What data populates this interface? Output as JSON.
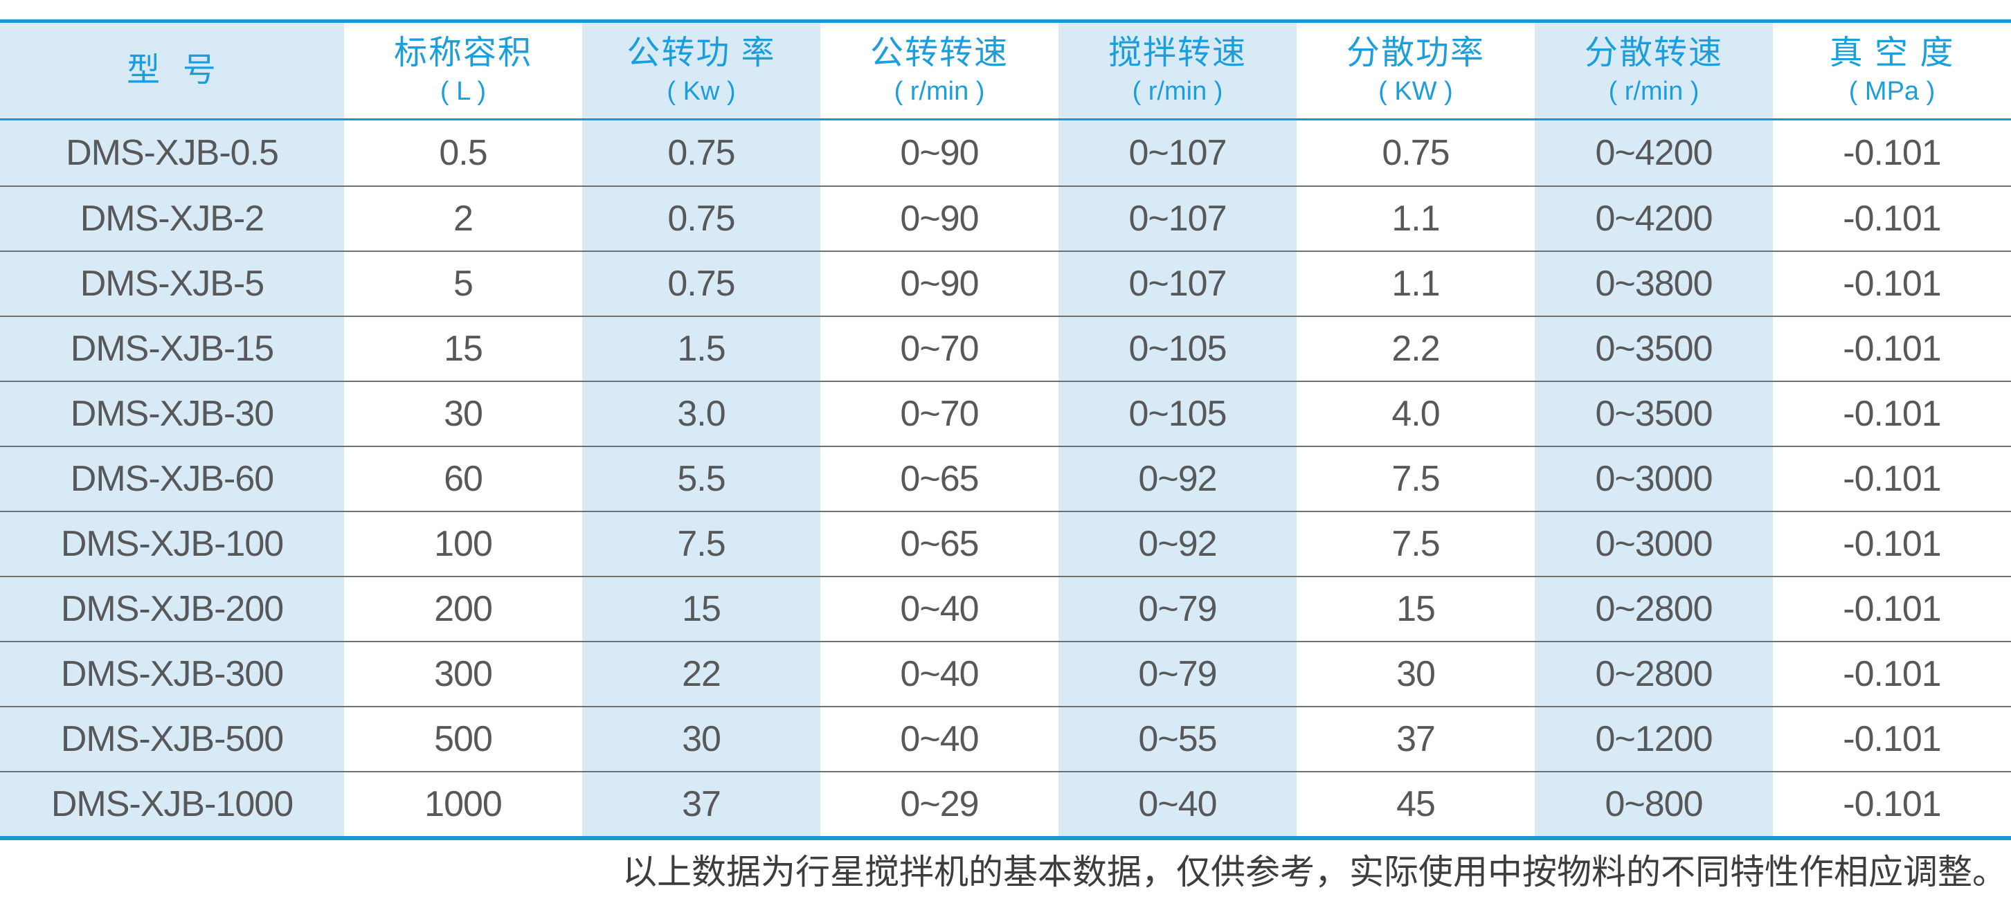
{
  "table": {
    "columns": [
      {
        "label": "型  号",
        "unit": ""
      },
      {
        "label": "标称容积",
        "unit": "( L )"
      },
      {
        "label": "公转功 率",
        "unit": "( Kw )"
      },
      {
        "label": "公转转速",
        "unit": "( r/min )"
      },
      {
        "label": "搅拌转速",
        "unit": "( r/min )"
      },
      {
        "label": "分散功率",
        "unit": "( KW )"
      },
      {
        "label": "分散转速",
        "unit": "( r/min )"
      },
      {
        "label": "真 空 度",
        "unit": "( MPa )"
      }
    ],
    "rows": [
      [
        "DMS-XJB-0.5",
        "0.5",
        "0.75",
        "0~90",
        "0~107",
        "0.75",
        "0~4200",
        "-0.101"
      ],
      [
        "DMS-XJB-2",
        "2",
        "0.75",
        "0~90",
        "0~107",
        "1.1",
        "0~4200",
        "-0.101"
      ],
      [
        "DMS-XJB-5",
        "5",
        "0.75",
        "0~90",
        "0~107",
        "1.1",
        "0~3800",
        "-0.101"
      ],
      [
        "DMS-XJB-15",
        "15",
        "1.5",
        "0~70",
        "0~105",
        "2.2",
        "0~3500",
        "-0.101"
      ],
      [
        "DMS-XJB-30",
        "30",
        "3.0",
        "0~70",
        "0~105",
        "4.0",
        "0~3500",
        "-0.101"
      ],
      [
        "DMS-XJB-60",
        "60",
        "5.5",
        "0~65",
        "0~92",
        "7.5",
        "0~3000",
        "-0.101"
      ],
      [
        "DMS-XJB-100",
        "100",
        "7.5",
        "0~65",
        "0~92",
        "7.5",
        "0~3000",
        "-0.101"
      ],
      [
        "DMS-XJB-200",
        "200",
        "15",
        "0~40",
        "0~79",
        "15",
        "0~2800",
        "-0.101"
      ],
      [
        "DMS-XJB-300",
        "300",
        "22",
        "0~40",
        "0~79",
        "30",
        "0~2800",
        "-0.101"
      ],
      [
        "DMS-XJB-500",
        "500",
        "30",
        "0~40",
        "0~55",
        "37",
        "0~1200",
        "-0.101"
      ],
      [
        "DMS-XJB-1000",
        "1000",
        "37",
        "0~29",
        "0~40",
        "45",
        "0~800",
        "-0.101"
      ]
    ]
  },
  "footer": {
    "note": "以上数据为行星搅拌机的基本数据，仅供参考，实际使用中按物料的不同特性作相应调整。"
  },
  "colors": {
    "accent_blue": "#1898d6",
    "header_text_blue": "#1b9edc",
    "band_light_blue": "#d9eaf7",
    "body_text": "#57585a",
    "row_separator": "#6f7072",
    "footnote_text": "#3d3d3d"
  }
}
